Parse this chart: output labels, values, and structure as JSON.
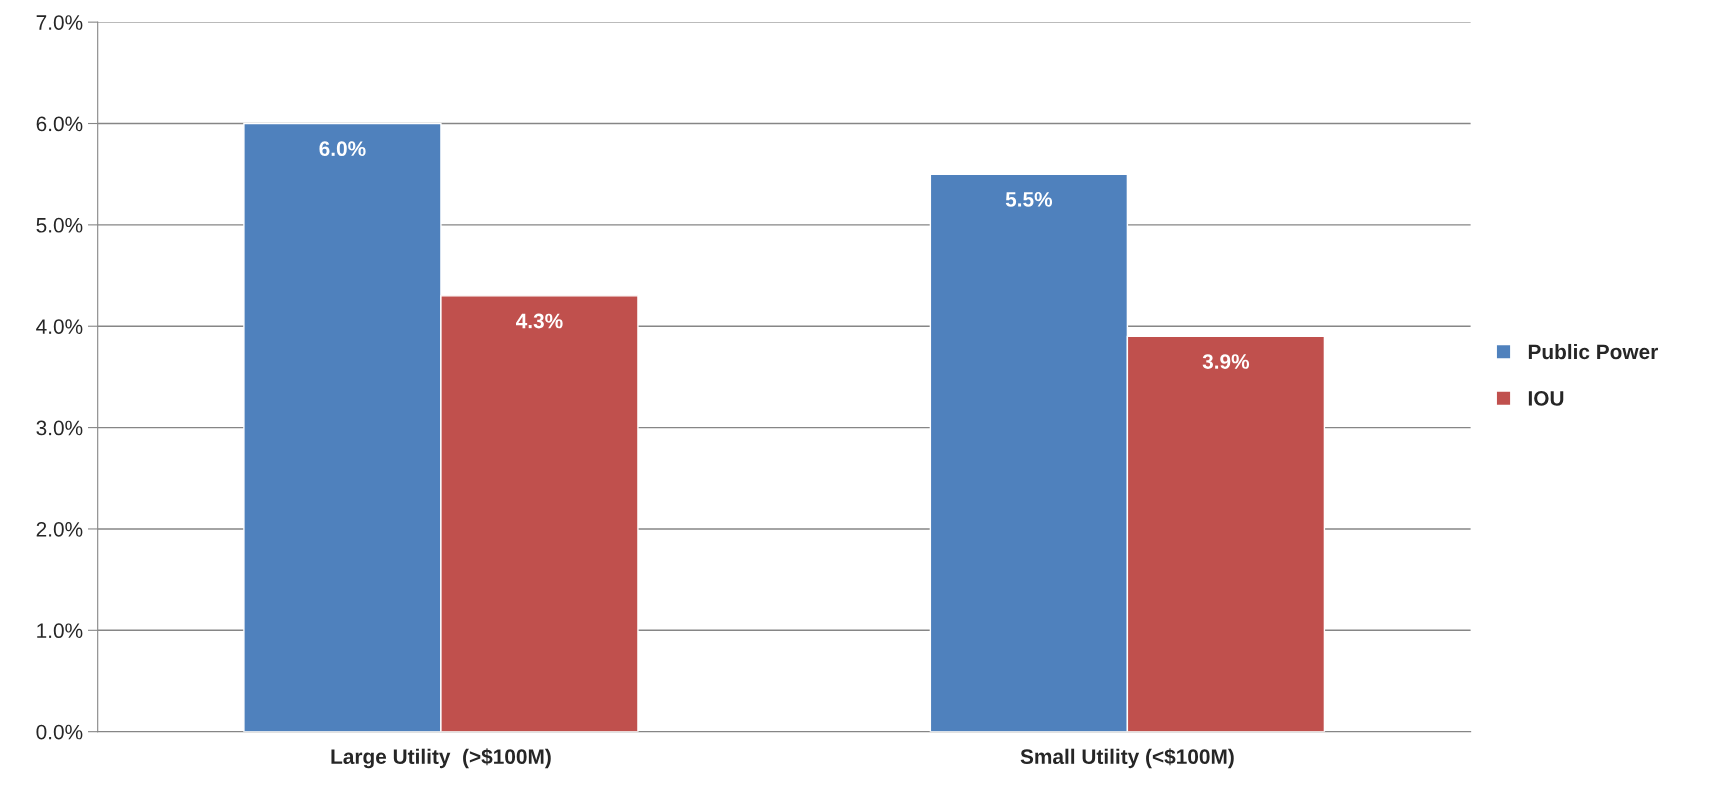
{
  "chart_data": {
    "type": "bar",
    "categories": [
      "Large Utility  (>$100M)",
      "Small Utility (<$100M)"
    ],
    "series": [
      {
        "name": "Public Power",
        "color": "#4f81bd",
        "values": [
          6.0,
          5.5
        ],
        "value_labels": [
          "6.0%",
          "5.5%"
        ]
      },
      {
        "name": "IOU",
        "color": "#c0504d",
        "values": [
          4.3,
          3.9
        ],
        "value_labels": [
          "4.3%",
          "3.9%"
        ]
      }
    ],
    "ylim": [
      0,
      7
    ],
    "yticks": [
      {
        "value": 0,
        "label": "0.0%"
      },
      {
        "value": 1,
        "label": "1.0%"
      },
      {
        "value": 2,
        "label": "2.0%"
      },
      {
        "value": 3,
        "label": "3.0%"
      },
      {
        "value": 4,
        "label": "4.0%"
      },
      {
        "value": 5,
        "label": "5.0%"
      },
      {
        "value": 6,
        "label": "6.0%"
      },
      {
        "value": 7,
        "label": "7.0%"
      }
    ],
    "grid": "y",
    "legend": "right"
  }
}
